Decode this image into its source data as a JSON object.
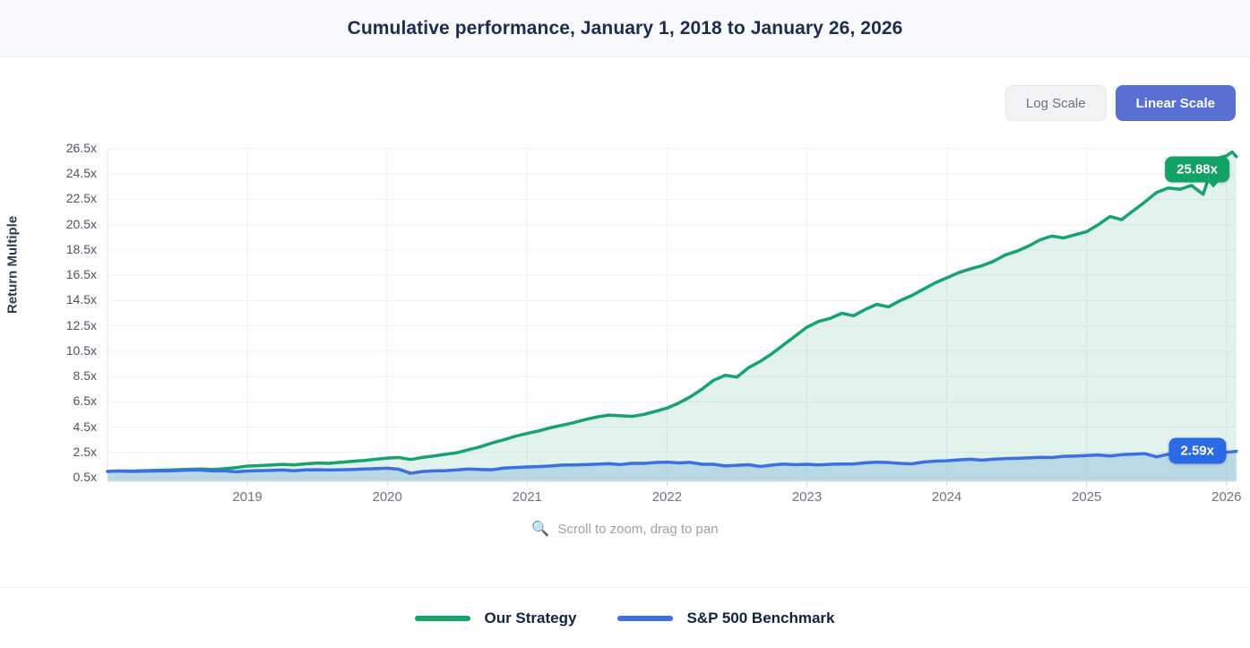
{
  "header": {
    "title": "Cumulative performance, January 1, 2018 to January 26, 2026"
  },
  "toolbar": {
    "log_label": "Log Scale",
    "linear_label": "Linear Scale",
    "active": "Linear Scale",
    "active_color": "#5a6fd4"
  },
  "hint": {
    "icon": "🔍",
    "text": "Scroll to zoom, drag to pan"
  },
  "chart_data": {
    "type": "line",
    "title": "Cumulative performance, January 1, 2018 to January 26, 2026",
    "xlabel": "",
    "ylabel": "Return Multiple",
    "ylim": [
      0.5,
      26.5
    ],
    "xlim": [
      2018,
      2026.07
    ],
    "y_ticks": [
      0.5,
      2.5,
      4.5,
      6.5,
      8.5,
      10.5,
      12.5,
      14.5,
      16.5,
      18.5,
      20.5,
      22.5,
      24.5,
      26.5
    ],
    "y_tick_suffix": "x",
    "x_ticks": [
      2019,
      2020,
      2021,
      2022,
      2023,
      2024,
      2025,
      2026
    ],
    "grid": true,
    "legend_position": "bottom",
    "series": [
      {
        "name": "Our Strategy",
        "color": "#16a36c",
        "fill": "rgba(23,163,110,0.13)",
        "badge_color": "#12a268",
        "end_label": "25.88x",
        "end_value": 25.88,
        "points": [
          [
            2018,
            1.0
          ],
          [
            2018.083,
            1.03
          ],
          [
            2018.167,
            1.02
          ],
          [
            2018.25,
            1.05
          ],
          [
            2018.333,
            1.08
          ],
          [
            2018.417,
            1.1
          ],
          [
            2018.5,
            1.13
          ],
          [
            2018.583,
            1.16
          ],
          [
            2018.667,
            1.19
          ],
          [
            2018.75,
            1.15
          ],
          [
            2018.833,
            1.21
          ],
          [
            2018.917,
            1.3
          ],
          [
            2019,
            1.42
          ],
          [
            2019.083,
            1.46
          ],
          [
            2019.167,
            1.5
          ],
          [
            2019.25,
            1.55
          ],
          [
            2019.333,
            1.52
          ],
          [
            2019.417,
            1.6
          ],
          [
            2019.5,
            1.66
          ],
          [
            2019.583,
            1.63
          ],
          [
            2019.667,
            1.72
          ],
          [
            2019.75,
            1.79
          ],
          [
            2019.833,
            1.86
          ],
          [
            2019.917,
            1.96
          ],
          [
            2020,
            2.05
          ],
          [
            2020.083,
            2.1
          ],
          [
            2020.167,
            1.94
          ],
          [
            2020.25,
            2.1
          ],
          [
            2020.333,
            2.22
          ],
          [
            2020.417,
            2.35
          ],
          [
            2020.5,
            2.48
          ],
          [
            2020.583,
            2.72
          ],
          [
            2020.667,
            2.95
          ],
          [
            2020.75,
            3.25
          ],
          [
            2020.833,
            3.5
          ],
          [
            2020.917,
            3.78
          ],
          [
            2021,
            4.0
          ],
          [
            2021.083,
            4.2
          ],
          [
            2021.167,
            4.45
          ],
          [
            2021.25,
            4.65
          ],
          [
            2021.333,
            4.85
          ],
          [
            2021.417,
            5.1
          ],
          [
            2021.5,
            5.3
          ],
          [
            2021.583,
            5.45
          ],
          [
            2021.667,
            5.4
          ],
          [
            2021.75,
            5.35
          ],
          [
            2021.833,
            5.5
          ],
          [
            2021.917,
            5.75
          ],
          [
            2022,
            6.0
          ],
          [
            2022.083,
            6.4
          ],
          [
            2022.167,
            6.9
          ],
          [
            2022.25,
            7.5
          ],
          [
            2022.333,
            8.2
          ],
          [
            2022.417,
            8.6
          ],
          [
            2022.5,
            8.45
          ],
          [
            2022.583,
            9.2
          ],
          [
            2022.667,
            9.7
          ],
          [
            2022.75,
            10.3
          ],
          [
            2022.833,
            11.0
          ],
          [
            2022.917,
            11.7
          ],
          [
            2023,
            12.4
          ],
          [
            2023.083,
            12.85
          ],
          [
            2023.167,
            13.1
          ],
          [
            2023.25,
            13.5
          ],
          [
            2023.333,
            13.3
          ],
          [
            2023.417,
            13.8
          ],
          [
            2023.5,
            14.2
          ],
          [
            2023.583,
            14.0
          ],
          [
            2023.667,
            14.5
          ],
          [
            2023.75,
            14.9
          ],
          [
            2023.833,
            15.4
          ],
          [
            2023.917,
            15.9
          ],
          [
            2024,
            16.3
          ],
          [
            2024.083,
            16.7
          ],
          [
            2024.167,
            17.0
          ],
          [
            2024.25,
            17.25
          ],
          [
            2024.333,
            17.6
          ],
          [
            2024.417,
            18.1
          ],
          [
            2024.5,
            18.4
          ],
          [
            2024.583,
            18.8
          ],
          [
            2024.667,
            19.3
          ],
          [
            2024.75,
            19.6
          ],
          [
            2024.833,
            19.45
          ],
          [
            2024.917,
            19.7
          ],
          [
            2025,
            19.95
          ],
          [
            2025.083,
            20.5
          ],
          [
            2025.167,
            21.15
          ],
          [
            2025.25,
            20.9
          ],
          [
            2025.333,
            21.6
          ],
          [
            2025.417,
            22.3
          ],
          [
            2025.5,
            23.05
          ],
          [
            2025.583,
            23.4
          ],
          [
            2025.667,
            23.3
          ],
          [
            2025.75,
            23.6
          ],
          [
            2025.833,
            22.9
          ],
          [
            2025.917,
            25.7
          ],
          [
            2026,
            25.95
          ],
          [
            2026.04,
            26.25
          ],
          [
            2026.07,
            25.88
          ]
        ]
      },
      {
        "name": "S&P 500 Benchmark",
        "color": "#3c6fe3",
        "fill": "rgba(130,180,220,0.42)",
        "badge_color": "#2c69e5",
        "end_label": "2.59x",
        "end_value": 2.59,
        "points": [
          [
            2018,
            1.0
          ],
          [
            2018.083,
            1.03
          ],
          [
            2018.167,
            1.0
          ],
          [
            2018.25,
            1.01
          ],
          [
            2018.333,
            1.03
          ],
          [
            2018.417,
            1.04
          ],
          [
            2018.5,
            1.07
          ],
          [
            2018.583,
            1.1
          ],
          [
            2018.667,
            1.1
          ],
          [
            2018.75,
            1.03
          ],
          [
            2018.833,
            1.05
          ],
          [
            2018.917,
            0.97
          ],
          [
            2019,
            1.03
          ],
          [
            2019.083,
            1.06
          ],
          [
            2019.167,
            1.08
          ],
          [
            2019.25,
            1.11
          ],
          [
            2019.333,
            1.05
          ],
          [
            2019.417,
            1.12
          ],
          [
            2019.5,
            1.13
          ],
          [
            2019.583,
            1.11
          ],
          [
            2019.667,
            1.13
          ],
          [
            2019.75,
            1.15
          ],
          [
            2019.833,
            1.19
          ],
          [
            2019.917,
            1.22
          ],
          [
            2020,
            1.25
          ],
          [
            2020.083,
            1.17
          ],
          [
            2020.167,
            0.85
          ],
          [
            2020.25,
            0.99
          ],
          [
            2020.333,
            1.04
          ],
          [
            2020.417,
            1.06
          ],
          [
            2020.5,
            1.12
          ],
          [
            2020.583,
            1.19
          ],
          [
            2020.667,
            1.15
          ],
          [
            2020.75,
            1.13
          ],
          [
            2020.833,
            1.26
          ],
          [
            2020.917,
            1.31
          ],
          [
            2021,
            1.35
          ],
          [
            2021.083,
            1.38
          ],
          [
            2021.167,
            1.43
          ],
          [
            2021.25,
            1.5
          ],
          [
            2021.333,
            1.51
          ],
          [
            2021.417,
            1.54
          ],
          [
            2021.5,
            1.57
          ],
          [
            2021.583,
            1.61
          ],
          [
            2021.667,
            1.54
          ],
          [
            2021.75,
            1.64
          ],
          [
            2021.833,
            1.63
          ],
          [
            2021.917,
            1.7
          ],
          [
            2022,
            1.73
          ],
          [
            2022.083,
            1.67
          ],
          [
            2022.167,
            1.71
          ],
          [
            2022.25,
            1.56
          ],
          [
            2022.333,
            1.56
          ],
          [
            2022.417,
            1.43
          ],
          [
            2022.5,
            1.48
          ],
          [
            2022.583,
            1.53
          ],
          [
            2022.667,
            1.39
          ],
          [
            2022.75,
            1.5
          ],
          [
            2022.833,
            1.58
          ],
          [
            2022.917,
            1.53
          ],
          [
            2023,
            1.56
          ],
          [
            2023.083,
            1.51
          ],
          [
            2023.167,
            1.56
          ],
          [
            2023.25,
            1.58
          ],
          [
            2023.333,
            1.59
          ],
          [
            2023.417,
            1.68
          ],
          [
            2023.5,
            1.73
          ],
          [
            2023.583,
            1.7
          ],
          [
            2023.667,
            1.63
          ],
          [
            2023.75,
            1.6
          ],
          [
            2023.833,
            1.74
          ],
          [
            2023.917,
            1.81
          ],
          [
            2024,
            1.84
          ],
          [
            2024.083,
            1.91
          ],
          [
            2024.167,
            1.96
          ],
          [
            2024.25,
            1.89
          ],
          [
            2024.333,
            1.96
          ],
          [
            2024.417,
            2.01
          ],
          [
            2024.5,
            2.03
          ],
          [
            2024.583,
            2.07
          ],
          [
            2024.667,
            2.11
          ],
          [
            2024.75,
            2.09
          ],
          [
            2024.833,
            2.19
          ],
          [
            2024.917,
            2.21
          ],
          [
            2025,
            2.25
          ],
          [
            2025.083,
            2.3
          ],
          [
            2025.167,
            2.22
          ],
          [
            2025.25,
            2.32
          ],
          [
            2025.333,
            2.36
          ],
          [
            2025.417,
            2.4
          ],
          [
            2025.5,
            2.15
          ],
          [
            2025.583,
            2.35
          ],
          [
            2025.667,
            2.42
          ],
          [
            2025.75,
            2.45
          ],
          [
            2025.833,
            2.32
          ],
          [
            2025.917,
            2.48
          ],
          [
            2026,
            2.52
          ],
          [
            2026.04,
            2.55
          ],
          [
            2026.07,
            2.59
          ]
        ]
      }
    ]
  }
}
